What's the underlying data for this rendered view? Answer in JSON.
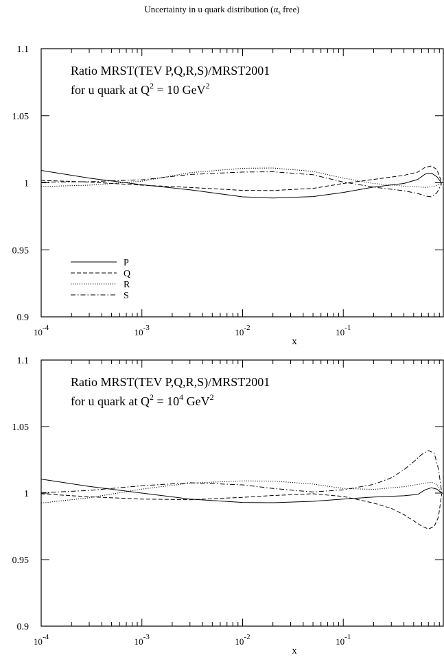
{
  "title": {
    "prefix": "Uncertainty in u quark distribution (",
    "greek": "α",
    "subscript": "s",
    "suffix": " free)"
  },
  "colors": {
    "axis": "#000000",
    "background": "#ffffff"
  },
  "chart_data": [
    {
      "type": "line",
      "xscale": "log",
      "xlim": [
        0.0001,
        1
      ],
      "ylim": [
        0.9,
        1.1
      ],
      "xlabel": "x",
      "x_ticks": [
        {
          "base": "10",
          "exp": "-4"
        },
        {
          "base": "10",
          "exp": "-3"
        },
        {
          "base": "10",
          "exp": "-2"
        },
        {
          "base": "10",
          "exp": "-1"
        }
      ],
      "y_ticks": [
        "0.9",
        "0.95",
        "1",
        "1.05",
        "1.1"
      ],
      "annotation": {
        "line1": "Ratio MRST(TEV P,Q,R,S)/MRST2001",
        "line2_pre": "for u quark at Q",
        "line2_sup": "2",
        "line2_mid": " = 10 GeV",
        "line2_mid_sup": "",
        "line2_unit_sup": "2"
      },
      "legend": {
        "placement": "bottom-left",
        "entries": [
          "P",
          "Q",
          "R",
          "S"
        ]
      },
      "series": [
        {
          "name": "P",
          "style": "solid",
          "x": [
            0.0001,
            0.0003,
            0.001,
            0.003,
            0.01,
            0.02,
            0.05,
            0.1,
            0.2,
            0.4,
            0.55,
            0.65,
            0.75,
            0.85,
            0.95
          ],
          "y": [
            1.0092,
            1.0035,
            0.9985,
            0.9948,
            0.9895,
            0.9886,
            0.9897,
            0.9928,
            0.9968,
            0.9995,
            1.0025,
            1.0065,
            1.0072,
            1.0045,
            0.9998
          ]
        },
        {
          "name": "Q",
          "style": "dashed",
          "x": [
            0.0001,
            0.0003,
            0.001,
            0.003,
            0.01,
            0.02,
            0.05,
            0.1,
            0.2,
            0.4,
            0.55,
            0.65,
            0.75,
            0.85,
            0.95
          ],
          "y": [
            1.0018,
            1.0005,
            0.9982,
            0.9965,
            0.9943,
            0.9942,
            0.9958,
            0.9995,
            1.0025,
            1.0055,
            1.008,
            1.0115,
            1.0125,
            1.01,
            1.0002
          ]
        },
        {
          "name": "R",
          "style": "dotted",
          "x": [
            0.0001,
            0.0003,
            0.001,
            0.003,
            0.01,
            0.02,
            0.05,
            0.1,
            0.2,
            0.4,
            0.55,
            0.65,
            0.75,
            0.85,
            0.95
          ],
          "y": [
            0.9972,
            0.9982,
            1.0012,
            1.0075,
            1.0108,
            1.011,
            1.0085,
            1.0035,
            0.9995,
            0.9975,
            0.997,
            0.9965,
            0.997,
            0.998,
            0.9998
          ]
        },
        {
          "name": "S",
          "style": "dashdot",
          "x": [
            0.0001,
            0.0003,
            0.001,
            0.003,
            0.01,
            0.02,
            0.05,
            0.1,
            0.2,
            0.4,
            0.55,
            0.65,
            0.75,
            0.85,
            0.95
          ],
          "y": [
            1.0005,
            1.0008,
            1.0022,
            1.0062,
            1.008,
            1.0082,
            1.006,
            1.0005,
            0.9968,
            0.994,
            0.992,
            0.9902,
            0.9895,
            0.9925,
            0.9995
          ]
        }
      ]
    },
    {
      "type": "line",
      "xscale": "log",
      "xlim": [
        0.0001,
        1
      ],
      "ylim": [
        0.9,
        1.1
      ],
      "xlabel": "x",
      "x_ticks": [
        {
          "base": "10",
          "exp": "-4"
        },
        {
          "base": "10",
          "exp": "-3"
        },
        {
          "base": "10",
          "exp": "-2"
        },
        {
          "base": "10",
          "exp": "-1"
        }
      ],
      "y_ticks": [
        "0.9",
        "0.95",
        "1",
        "1.05",
        "1.1"
      ],
      "annotation": {
        "line1": "Ratio MRST(TEV P,Q,R,S)/MRST2001",
        "line2_pre": "for u quark at Q",
        "line2_sup": "2",
        "line2_mid": " = 10",
        "line2_mid_sup": "4",
        "line2_unit_sup": "2"
      },
      "legend": {
        "placement": "none",
        "entries": []
      },
      "series": [
        {
          "name": "P",
          "style": "solid",
          "x": [
            0.0001,
            0.0003,
            0.001,
            0.003,
            0.01,
            0.02,
            0.05,
            0.1,
            0.2,
            0.4,
            0.55,
            0.65,
            0.75,
            0.85,
            0.95
          ],
          "y": [
            1.0105,
            1.005,
            1.0,
            0.9955,
            0.993,
            0.9928,
            0.9938,
            0.9955,
            0.997,
            0.998,
            0.999,
            1.0025,
            1.004,
            1.003,
            1.0
          ]
        },
        {
          "name": "Q",
          "style": "dashed",
          "x": [
            0.0001,
            0.0003,
            0.001,
            0.003,
            0.01,
            0.02,
            0.05,
            0.1,
            0.2,
            0.3,
            0.4,
            0.5,
            0.6,
            0.7,
            0.8,
            0.88,
            0.95
          ],
          "y": [
            0.9995,
            0.9972,
            0.9955,
            0.995,
            0.9968,
            0.9982,
            0.9995,
            0.9975,
            0.9925,
            0.9885,
            0.9838,
            0.9792,
            0.9752,
            0.973,
            0.975,
            0.982,
            0.9995
          ]
        },
        {
          "name": "R",
          "style": "dotted",
          "x": [
            0.0001,
            0.0003,
            0.001,
            0.003,
            0.01,
            0.02,
            0.05,
            0.1,
            0.2,
            0.4,
            0.55,
            0.65,
            0.75,
            0.85,
            0.95
          ],
          "y": [
            0.9925,
            0.9965,
            1.003,
            1.0075,
            1.0092,
            1.009,
            1.0068,
            1.0035,
            1.0028,
            1.0048,
            1.0065,
            1.0075,
            1.0082,
            1.0065,
            1.0
          ]
        },
        {
          "name": "S",
          "style": "dashdot",
          "x": [
            0.0001,
            0.0003,
            0.001,
            0.003,
            0.01,
            0.02,
            0.05,
            0.1,
            0.2,
            0.3,
            0.4,
            0.5,
            0.6,
            0.7,
            0.8,
            0.88,
            0.95
          ],
          "y": [
            1.0002,
            1.002,
            1.0055,
            1.0078,
            1.0062,
            1.0035,
            1.0008,
            1.0025,
            1.0065,
            1.0115,
            1.0175,
            1.0235,
            1.029,
            1.032,
            1.03,
            1.018,
            1.0005
          ]
        }
      ]
    }
  ]
}
